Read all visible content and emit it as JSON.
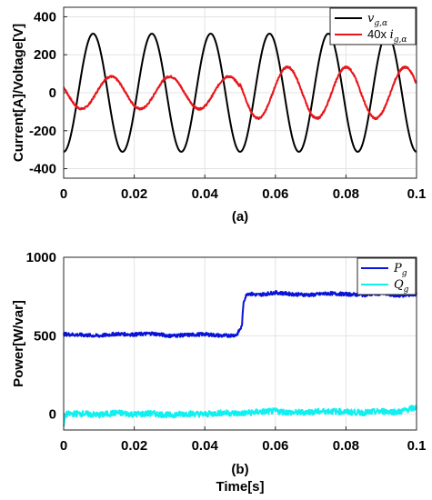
{
  "chart_data": [
    {
      "type": "line",
      "caption": "(a)",
      "xlabel": "",
      "ylabel": "Current[A]/Voltage[V]",
      "xlim": [
        0,
        0.1
      ],
      "ylim": [
        -450,
        450
      ],
      "xticks": [
        0,
        0.02,
        0.04,
        0.06,
        0.08,
        0.1
      ],
      "xtick_labels": [
        "0",
        "0.02",
        "0.04",
        "0.06",
        "0.08",
        "0.1"
      ],
      "yticks": [
        -400,
        -200,
        0,
        200,
        400
      ],
      "ytick_labels": [
        "-400",
        "-200",
        "0",
        "200",
        "400"
      ],
      "grid": true,
      "legend_position": "top-right",
      "series": [
        {
          "name": "v_g,α",
          "legend_main": "v",
          "legend_sub": "g,α",
          "legend_prefix": "",
          "color": "#000000",
          "shape": "sine",
          "frequency_hz": 60,
          "amplitude": 311,
          "phase_deg": -90
        },
        {
          "name": "40x i_g,α",
          "legend_main": "i",
          "legend_sub": "g,α",
          "legend_prefix": "40x ",
          "color": "#e8161a",
          "shape": "sine",
          "frequency_hz": 60,
          "amplitude_start": 85,
          "amplitude_end": 135,
          "amplitude_step_at": 0.05,
          "phase_deg": 160,
          "x": [
            0,
            0.002,
            0.005,
            0.008,
            0.011,
            0.014,
            0.017,
            0.02,
            0.023,
            0.026,
            0.029,
            0.032,
            0.035,
            0.038,
            0.041,
            0.044,
            0.047,
            0.05,
            0.053,
            0.056,
            0.059,
            0.062,
            0.065,
            0.068,
            0.071,
            0.074,
            0.077,
            0.08,
            0.083,
            0.086,
            0.089,
            0.092,
            0.095,
            0.098,
            0.1
          ],
          "y": [
            -65,
            -80,
            -40,
            35,
            85,
            45,
            -30,
            -85,
            -60,
            20,
            80,
            65,
            -10,
            -80,
            -75,
            5,
            80,
            75,
            0,
            -120,
            -110,
            25,
            130,
            110,
            -20,
            -130,
            -115,
            20,
            130,
            115,
            -25,
            -130,
            -110,
            30,
            120
          ]
        }
      ]
    },
    {
      "type": "line",
      "caption": "(b)",
      "xlabel": "Time[s]",
      "ylabel": "Power[W/var]",
      "xlim": [
        0,
        0.1
      ],
      "ylim": [
        -100,
        1000
      ],
      "xticks": [
        0,
        0.02,
        0.04,
        0.06,
        0.08,
        0.1
      ],
      "xtick_labels": [
        "0",
        "0.02",
        "0.04",
        "0.06",
        "0.08",
        "0.1"
      ],
      "yticks": [
        0,
        500,
        1000
      ],
      "ytick_labels": [
        "0",
        "500",
        "1000"
      ],
      "grid": true,
      "legend_position": "top-right",
      "series": [
        {
          "name": "P_g",
          "legend_main": "P",
          "legend_sub": "g",
          "legend_prefix": "",
          "color": "#0a14d8",
          "x": [
            0,
            0.005,
            0.01,
            0.015,
            0.02,
            0.025,
            0.03,
            0.035,
            0.04,
            0.045,
            0.049,
            0.0505,
            0.051,
            0.052,
            0.055,
            0.06,
            0.065,
            0.07,
            0.075,
            0.08,
            0.085,
            0.09,
            0.095,
            0.1
          ],
          "y": [
            510,
            505,
            500,
            512,
            508,
            515,
            500,
            505,
            510,
            500,
            505,
            560,
            720,
            770,
            760,
            775,
            765,
            760,
            770,
            765,
            760,
            770,
            755,
            765
          ]
        },
        {
          "name": "Q_g",
          "legend_main": "Q",
          "legend_sub": "g",
          "legend_prefix": "",
          "color": "#11f0f0",
          "x": [
            0,
            0.0005,
            0.005,
            0.01,
            0.015,
            0.02,
            0.025,
            0.03,
            0.035,
            0.04,
            0.045,
            0.05,
            0.055,
            0.06,
            0.065,
            0.07,
            0.075,
            0.08,
            0.085,
            0.09,
            0.095,
            0.1
          ],
          "y": [
            -80,
            0,
            5,
            -5,
            10,
            0,
            5,
            -5,
            5,
            0,
            10,
            5,
            15,
            20,
            10,
            15,
            20,
            15,
            10,
            20,
            15,
            45
          ]
        }
      ]
    }
  ]
}
